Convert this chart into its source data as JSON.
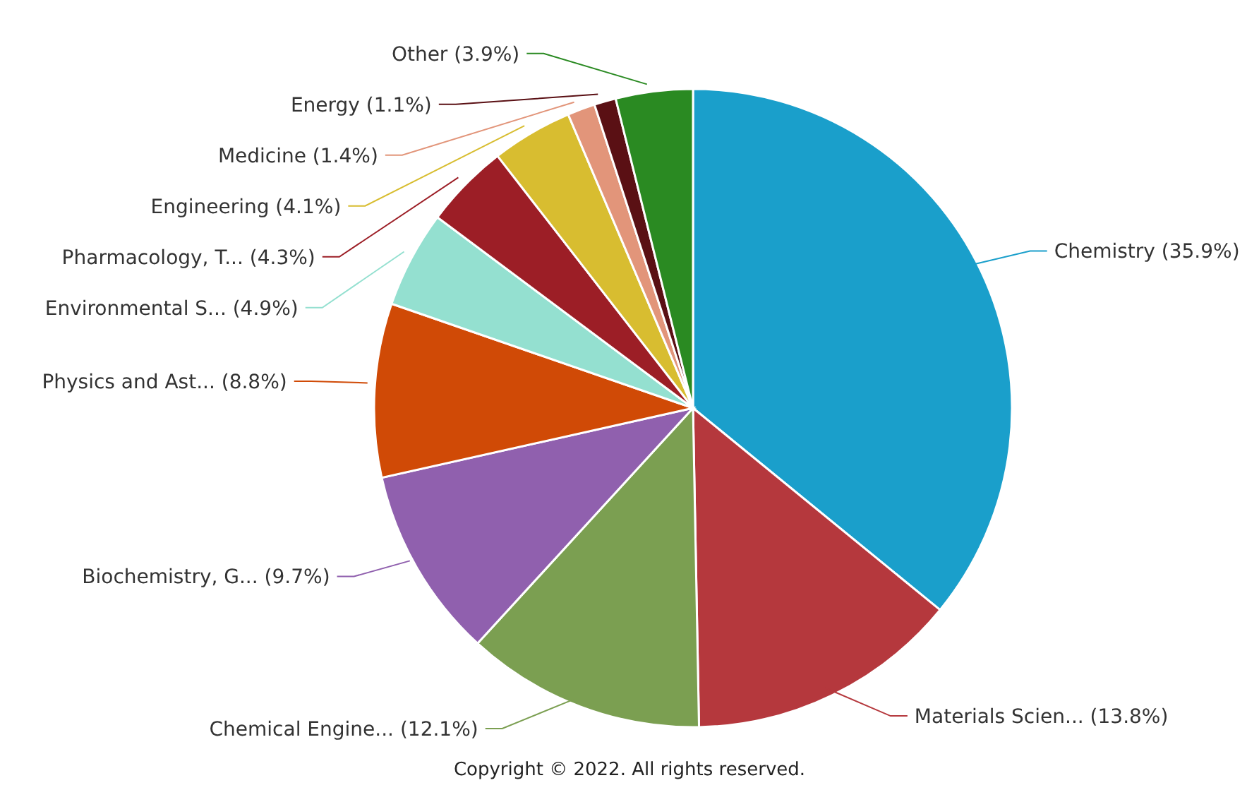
{
  "chart_data": {
    "type": "pie",
    "categories": [
      "Chemistry",
      "Materials Scien...",
      "Chemical Engine...",
      "Biochemistry, G...",
      "Physics and Ast...",
      "Environmental S...",
      "Pharmacology, T...",
      "Engineering",
      "Medicine",
      "Energy",
      "Other"
    ],
    "values": [
      35.9,
      13.8,
      12.1,
      9.7,
      8.8,
      4.9,
      4.3,
      4.1,
      1.4,
      1.1,
      3.9
    ],
    "value_labels": [
      "(35.9%)",
      "(13.8%)",
      "(12.1%)",
      "(9.7%)",
      "(8.8%)",
      "(4.9%)",
      "(4.3%)",
      "(4.1%)",
      "(1.4%)",
      "(1.1%)",
      "(3.9%)"
    ],
    "colors": [
      "#1a9fcb",
      "#b5383d",
      "#7b9f51",
      "#9060ae",
      "#d04a06",
      "#94e0d0",
      "#9c1e26",
      "#d8bd30",
      "#e2957a",
      "#5a1014",
      "#2a8a22"
    ],
    "legend": false,
    "annotations": [
      "Copyright © 2022. All rights reserved."
    ]
  }
}
